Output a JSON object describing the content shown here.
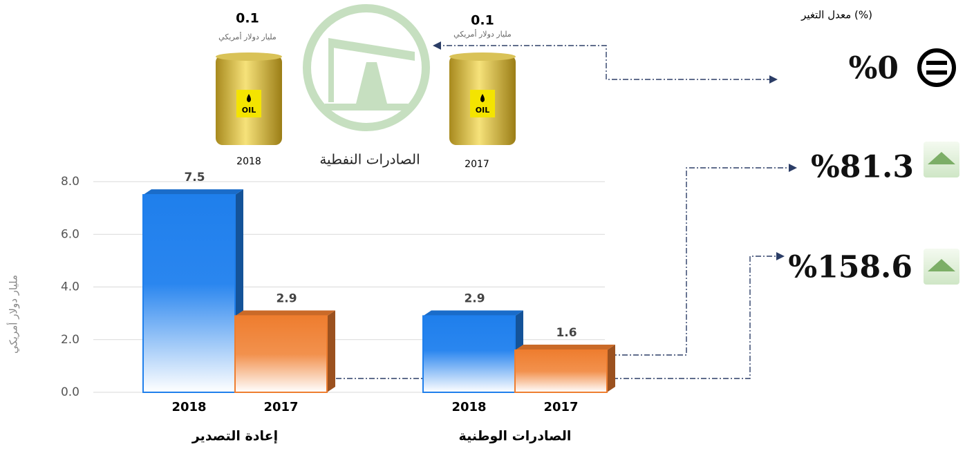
{
  "chart_data": {
    "type": "bar",
    "y_label": "مليار دولار أمريكي",
    "categories": [
      "إعادة التصدير",
      "الصادرات الوطنية"
    ],
    "series": [
      {
        "name": "2018",
        "color": "#1f7fec",
        "values": [
          7.5,
          2.9
        ]
      },
      {
        "name": "2017",
        "color": "#ee7d2f",
        "values": [
          2.9,
          1.6
        ]
      }
    ],
    "ylim": [
      0,
      8
    ],
    "yticks": [
      {
        "value": 0,
        "label": "0.0"
      },
      {
        "value": 2,
        "label": "2.0"
      },
      {
        "value": 4,
        "label": "4.0"
      },
      {
        "value": 6,
        "label": "6.0"
      },
      {
        "value": 8,
        "label": "8.0"
      }
    ],
    "grid": true
  },
  "oil_exports": {
    "title": "الصادرات النفطية",
    "unit": "مليار دولار أمريكي",
    "years": [
      {
        "year": "2018",
        "value": 0.1
      },
      {
        "year": "2017",
        "value": 0.1
      }
    ]
  },
  "change_rate": {
    "title": "معدل التغير (%)",
    "items": [
      {
        "value": 0,
        "label": "%0"
      },
      {
        "value": 81.3,
        "label": "%81.3"
      },
      {
        "value": 158.6,
        "label": "%158.6"
      }
    ]
  }
}
